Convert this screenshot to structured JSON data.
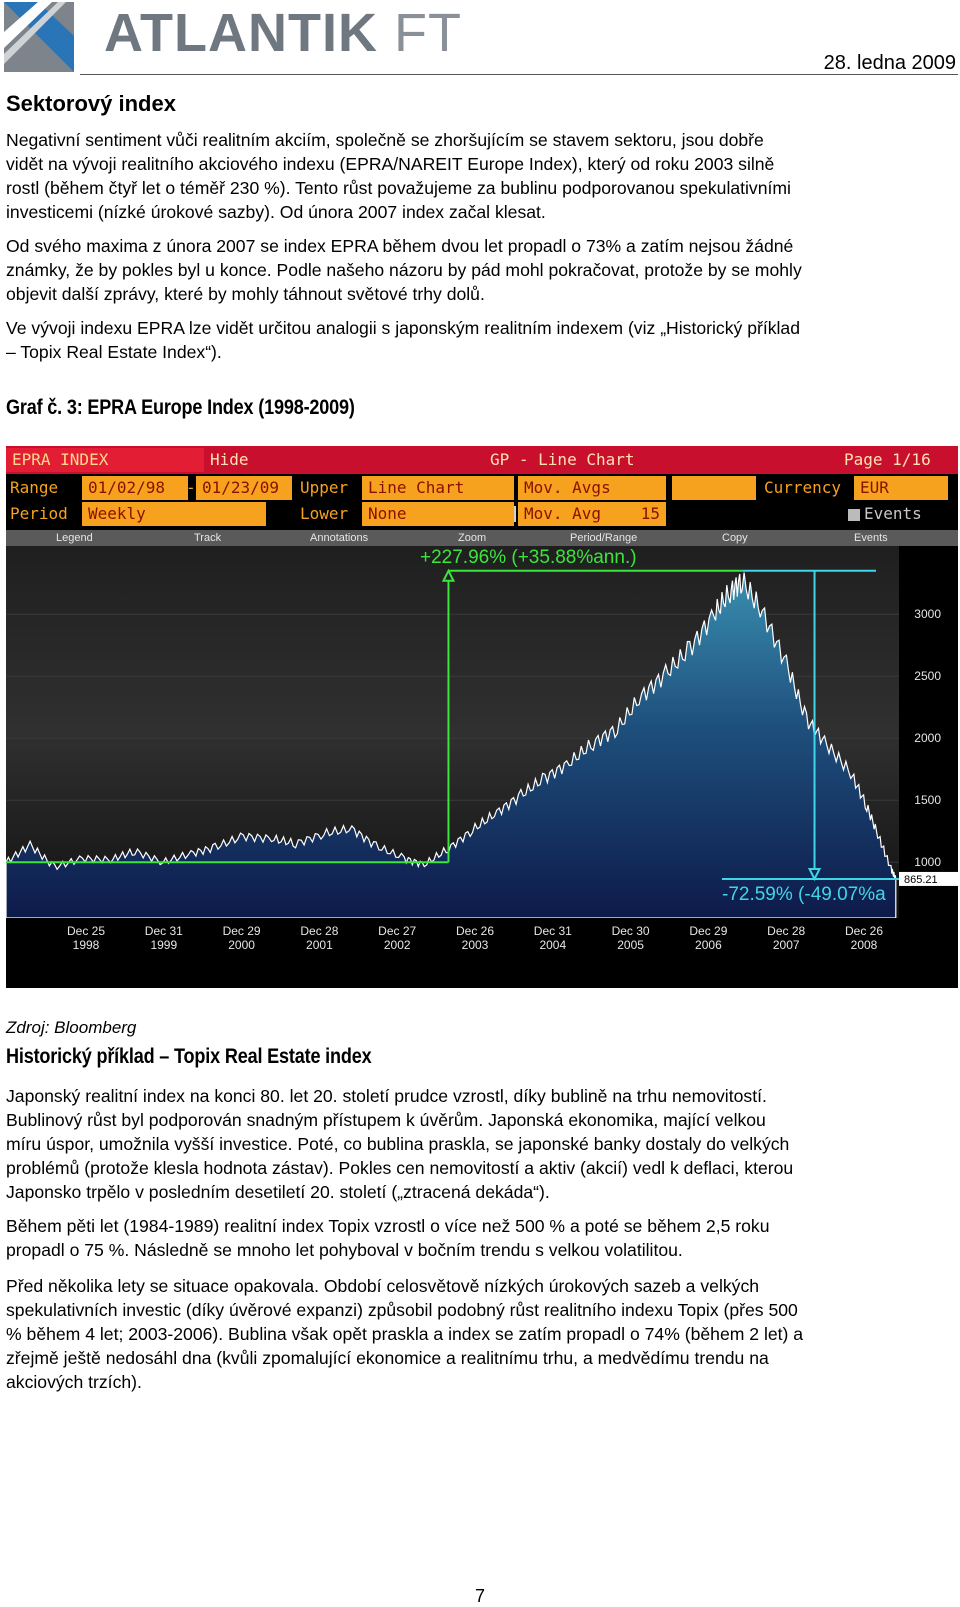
{
  "header": {
    "logo_text": "ATLANTIK",
    "logo_suffix": "FT",
    "date": "28. ledna 2009"
  },
  "section_title": "Sektorový index",
  "paragraphs_1": [
    [
      "Negativní sentiment vůči realitním akciím, společně se zhoršujícím se stavem sektoru, jsou dobře",
      "vidět na vývoji realitního akciového indexu (EPRA/NAREIT Europe Index), který od roku 2003 silně",
      "rostl (během čtyř let o téměř 230 %). Tento růst považujeme za bublinu podporovanou spekulativními",
      "investicemi (nízké úrokové sazby). Od února 2007 index začal klesat."
    ],
    [
      "Od svého maxima z února 2007 se index EPRA během dvou let propadl o 73% a zatím nejsou žádné",
      "známky, že by pokles byl u konce. Podle našeho názoru by pád mohl pokračovat, protože by se mohly",
      "objevit další zprávy, které by mohly táhnout světové trhy dolů."
    ],
    [
      "Ve vývoji indexu EPRA lze vidět určitou analogii s japonským realitním indexem (viz „Historický příklad",
      "– Topix Real Estate Index“)."
    ]
  ],
  "chart_caption": "Graf č. 3: EPRA Europe Index (1998-2009)",
  "bloomberg": {
    "row1": {
      "index_name": "EPRA INDEX",
      "hide": "Hide",
      "title": "GP - Line Chart",
      "page": "Page 1/16"
    },
    "row2": {
      "range_label": "Range",
      "start": "01/02/98",
      "dash": "-",
      "end": "01/23/09",
      "upper_label": "Upper",
      "upper_value": "Line Chart",
      "mov_avgs": "Mov. Avgs",
      "currency_label": "Currency",
      "currency": "EUR"
    },
    "row3": {
      "period_label": "Period",
      "period": "Weekly",
      "lower_label": "Lower",
      "lower_value": "None",
      "mov_avg": "Mov. Avg",
      "mov_avg_value": "15",
      "events": "Events"
    },
    "toolbar": [
      "Legend",
      "Track",
      "Annotations",
      "Zoom",
      "Period/Range",
      "Copy",
      "Events"
    ],
    "annotation_up": "+227.96% (+35.88%ann.)",
    "annotation_down": "-72.59% (-49.07%a",
    "last_price_tag": "865.21"
  },
  "chart_data": {
    "type": "area",
    "title": "",
    "xlabel": "",
    "ylabel": "",
    "ylim": [
      550,
      3550
    ],
    "yticks": [
      1000,
      1500,
      2000,
      2500,
      3000
    ],
    "xticks": [
      {
        "label": [
          "Dec 25",
          "1998"
        ]
      },
      {
        "label": [
          "Dec 31",
          "1999"
        ]
      },
      {
        "label": [
          "Dec 29",
          "2000"
        ]
      },
      {
        "label": [
          "Dec 28",
          "2001"
        ]
      },
      {
        "label": [
          "Dec 27",
          "2002"
        ]
      },
      {
        "label": [
          "Dec 26",
          "2003"
        ]
      },
      {
        "label": [
          "Dec 31",
          "2004"
        ]
      },
      {
        "label": [
          "Dec 30",
          "2005"
        ]
      },
      {
        "label": [
          "Dec 29",
          "2006"
        ]
      },
      {
        "label": [
          "Dec 28",
          "2007"
        ]
      },
      {
        "label": [
          "Dec 26",
          "2008"
        ]
      }
    ],
    "series": [
      {
        "x": [
          1998.0,
          1998.3,
          1998.6,
          1998.95,
          1999.3,
          1999.6,
          1999.95,
          2000.3,
          2000.6,
          2000.95,
          2001.3,
          2001.6,
          2001.95,
          2002.3,
          2002.6,
          2002.95,
          2003.2,
          2003.5,
          2003.8,
          2004.1,
          2004.4,
          2004.7,
          2005.0,
          2005.3,
          2005.6,
          2005.9,
          2006.2,
          2006.5,
          2006.8,
          2007.0,
          2007.15,
          2007.4,
          2007.7,
          2007.95,
          2008.2,
          2008.5,
          2008.7,
          2008.85,
          2009.0,
          2009.06
        ],
        "y": [
          1000,
          1140,
          960,
          1030,
          1020,
          1090,
          1000,
          1070,
          1120,
          1210,
          1190,
          1150,
          1230,
          1270,
          1130,
          1030,
          980,
          1110,
          1260,
          1400,
          1540,
          1680,
          1800,
          1960,
          2080,
          2340,
          2520,
          2720,
          3000,
          3180,
          3270,
          3020,
          2600,
          2150,
          1950,
          1720,
          1450,
          1200,
          950,
          865
        ]
      }
    ]
  },
  "source": "Zdroj: Bloomberg",
  "section2_title": "Historický příklad – Topix Real Estate index",
  "paragraphs_2": [
    [
      "Japonský realitní index na konci 80. let 20. století prudce vzrostl, díky bublině na trhu nemovitostí.",
      "Bublinový růst byl podporován snadným přístupem k úvěrům. Japonská ekonomika, mající velkou",
      "míru úspor, umožnila vyšší investice. Poté, co bublina praskla, se japonské banky dostaly do velkých",
      "problémů (protože klesla hodnota zástav). Pokles cen nemovitostí a aktiv (akcií) vedl k deflaci, kterou",
      "Japonsko trpělo v posledním desetiletí 20. století („ztracená dekáda“)."
    ],
    [
      "Během pěti let (1984-1989) realitní index Topix vzrostl o více než 500 % a poté se během 2,5 roku",
      "propadl o 75 %. Následně se mnoho let pohyboval v bočním trendu s velkou volatilitou."
    ],
    [
      "Před několika lety se situace opakovala. Období celosvětově nízkých úrokových sazeb a velkých",
      "spekulativních investic (díky úvěrové expanzi) způsobil podobný růst realitního indexu Topix (přes 500",
      "% během 4 let; 2003-2006). Bublina však opět praskla a index se zatím propadl o 74% (během 2 let) a",
      "zřejmě ještě nedosáhl dna (kvůli zpomalující ekonomice a realitnímu trhu, a medvědímu trendu na",
      "akciových trzích)."
    ]
  ],
  "page_number": "7"
}
